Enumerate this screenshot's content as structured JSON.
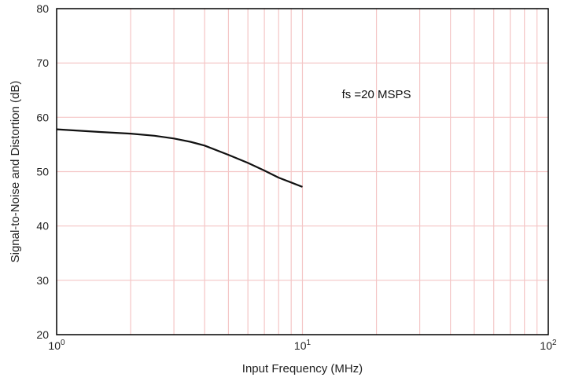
{
  "chart_data": {
    "type": "line",
    "title": "",
    "xlabel": "Input Frequency (MHz)",
    "ylabel": "Signal-to-Noise and Distortion (dB)",
    "xscale": "log",
    "xlim": [
      1,
      100
    ],
    "ylim": [
      20,
      80
    ],
    "x_ticks": [
      {
        "value": 1,
        "base": "10",
        "exp": "0"
      },
      {
        "value": 10,
        "base": "10",
        "exp": "1"
      },
      {
        "value": 100,
        "base": "10",
        "exp": "2"
      }
    ],
    "y_ticks": [
      20,
      30,
      40,
      50,
      60,
      70,
      80
    ],
    "grid": true,
    "colors": {
      "grid": "#f4c6c6",
      "line": "#111111",
      "frame": "#000000"
    },
    "annotations": [
      {
        "text": "fs =20 MSPS",
        "x": 20,
        "y": 63.5
      }
    ],
    "series": [
      {
        "x": [
          1,
          1.5,
          2,
          2.5,
          3,
          3.5,
          4,
          5,
          6,
          7,
          8,
          9,
          10
        ],
        "y": [
          57.8,
          57.3,
          57.0,
          56.6,
          56.1,
          55.5,
          54.8,
          53.1,
          51.6,
          50.2,
          48.9,
          48.0,
          47.2
        ]
      }
    ]
  }
}
